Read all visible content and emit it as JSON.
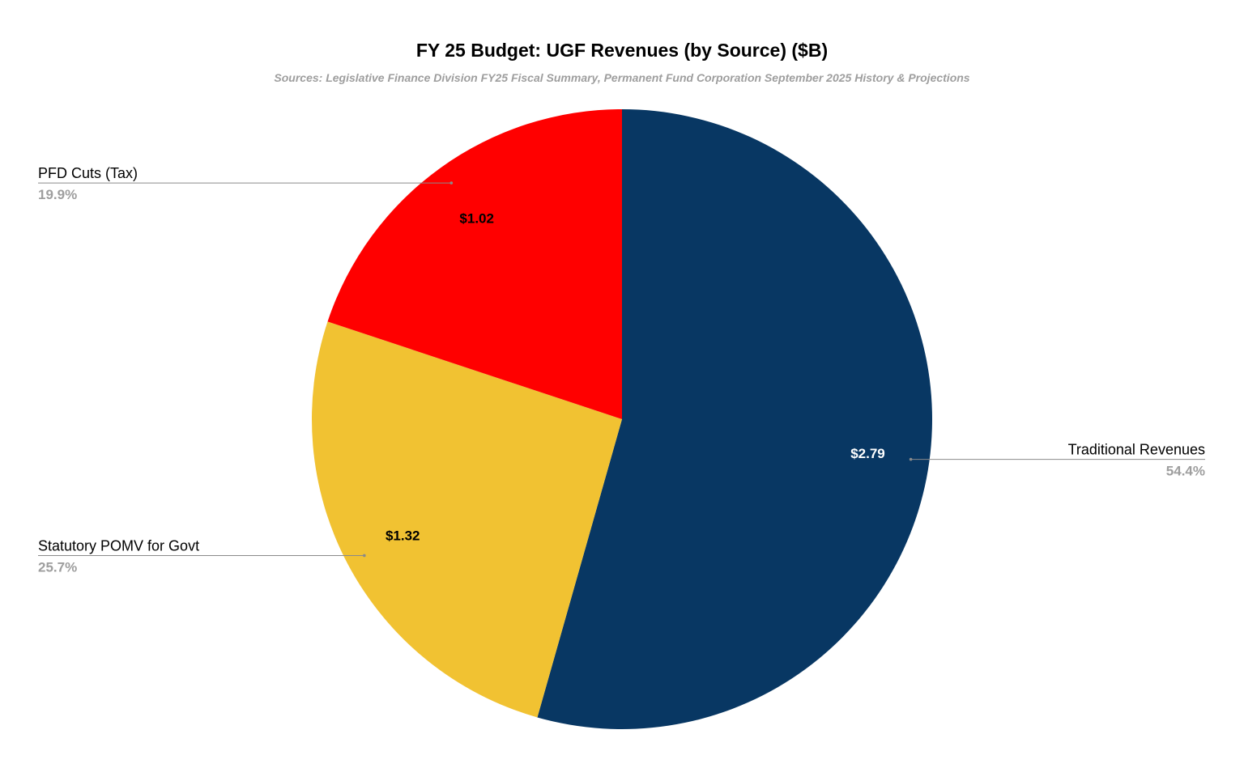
{
  "chart_data": {
    "type": "pie",
    "title": "FY 25 Budget: UGF Revenues (by Source) ($B)",
    "subtitle": "Sources: Legislative Finance Division FY25 Fiscal Summary, Permanent Fund Corporation September 2025 History & Projections",
    "start_angle": "top, clockwise",
    "slices": [
      {
        "name": "Traditional Revenues",
        "value": 2.79,
        "value_label": "$2.79",
        "percent": 54.4,
        "percent_label": "54.4%",
        "color": "#083763",
        "label_color": "#ffffff"
      },
      {
        "name": "Statutory POMV for Govt",
        "value": 1.32,
        "value_label": "$1.32",
        "percent": 25.7,
        "percent_label": "25.7%",
        "color": "#f1c232",
        "label_color": "#000000"
      },
      {
        "name": "PFD Cuts (Tax)",
        "value": 1.02,
        "value_label": "$1.02",
        "percent": 19.9,
        "percent_label": "19.9%",
        "color": "#ff0000",
        "label_color": "#000000"
      }
    ]
  }
}
